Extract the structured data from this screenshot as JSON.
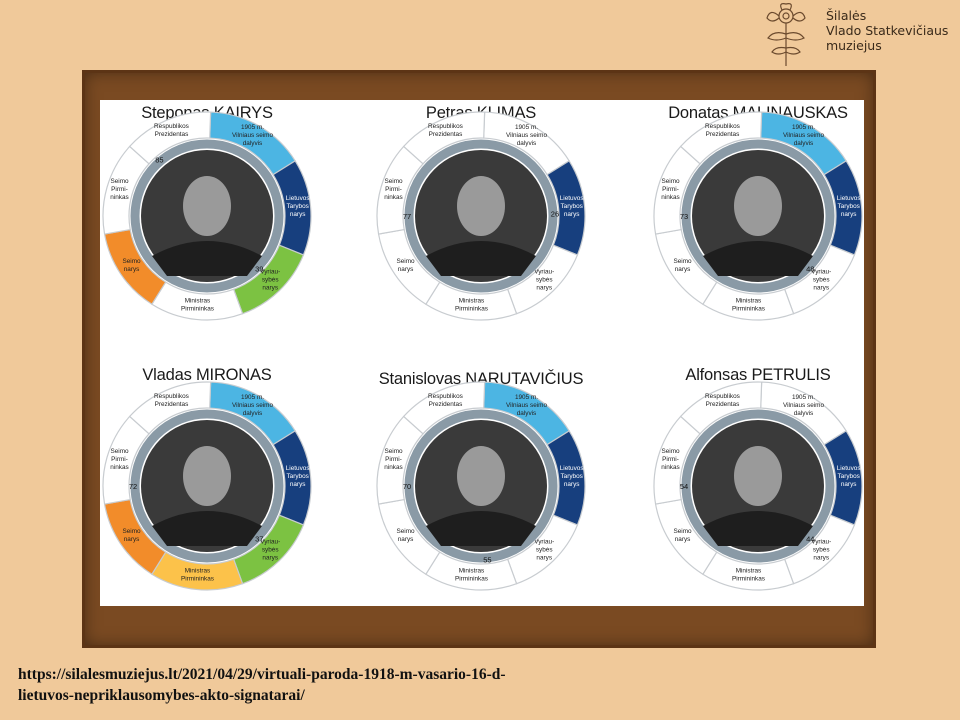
{
  "brand": {
    "line1": "Šilalės",
    "line2": "Vlado Statkevičiaus",
    "line3": "muziejus"
  },
  "ring_labels": {
    "prezidentas": [
      "Respublikos",
      "Prezidentas"
    ],
    "vilniaus": [
      "1905 m.",
      "Vilniaus seimo",
      "dalyvis"
    ],
    "tarybos": [
      "Lietuvos",
      "Tarybos",
      "narys"
    ],
    "vyriausybes": [
      "Vyriau-",
      "sybės",
      "narys"
    ],
    "ministras": [
      "Ministras",
      "Pirmininkas"
    ],
    "seimo_narys": [
      "Seimo",
      "narys"
    ],
    "seimo_pirmininkas": [
      "Seimo",
      "Pirmi-",
      "ninkas"
    ]
  },
  "colors": {
    "vilniaus": "#4cb5e3",
    "tarybos": "#173f7e",
    "vyriausybes": "#7cc242",
    "ministras": "#fcc24a",
    "seimo_narys": "#f28c2a",
    "inactive": "#ffffff"
  },
  "signatories": [
    {
      "name": "Steponas KAIRYS",
      "active": [
        "vilniaus",
        "tarybos",
        "vyriausybes",
        "seimo_narys"
      ],
      "age_start": "85",
      "age_end": "39",
      "photo": "portrait-photo"
    },
    {
      "name": "Petras KLIMAS",
      "active": [
        "tarybos"
      ],
      "age_start": "77",
      "age_end": "26",
      "photo": "portrait-photo"
    },
    {
      "name": "Donatas MALINAUSKAS",
      "active": [
        "vilniaus",
        "tarybos"
      ],
      "age_start": "73",
      "age_end": "48",
      "photo": "portrait-photo"
    },
    {
      "name": "Vladas MIRONAS",
      "active": [
        "vilniaus",
        "tarybos",
        "vyriausybes",
        "ministras",
        "seimo_narys"
      ],
      "age_start": "72",
      "age_end": "37",
      "photo": "portrait-photo"
    },
    {
      "name": "Stanislovas NARUTAVIČIUS",
      "active": [
        "vilniaus",
        "tarybos"
      ],
      "age_start": "70",
      "age_end": "55",
      "photo": "portrait-photo"
    },
    {
      "name": "Alfonsas PETRULIS",
      "active": [
        "tarybos"
      ],
      "age_start": "54",
      "age_end": "44",
      "photo": "portrait-photo"
    }
  ],
  "url": {
    "line1": "https://silalesmuziejus.lt/2021/04/29/virtuali-paroda-1918-m-vasario-16-d-",
    "line2": "lietuvos-nepriklausomybes-akto-signatarai/"
  }
}
